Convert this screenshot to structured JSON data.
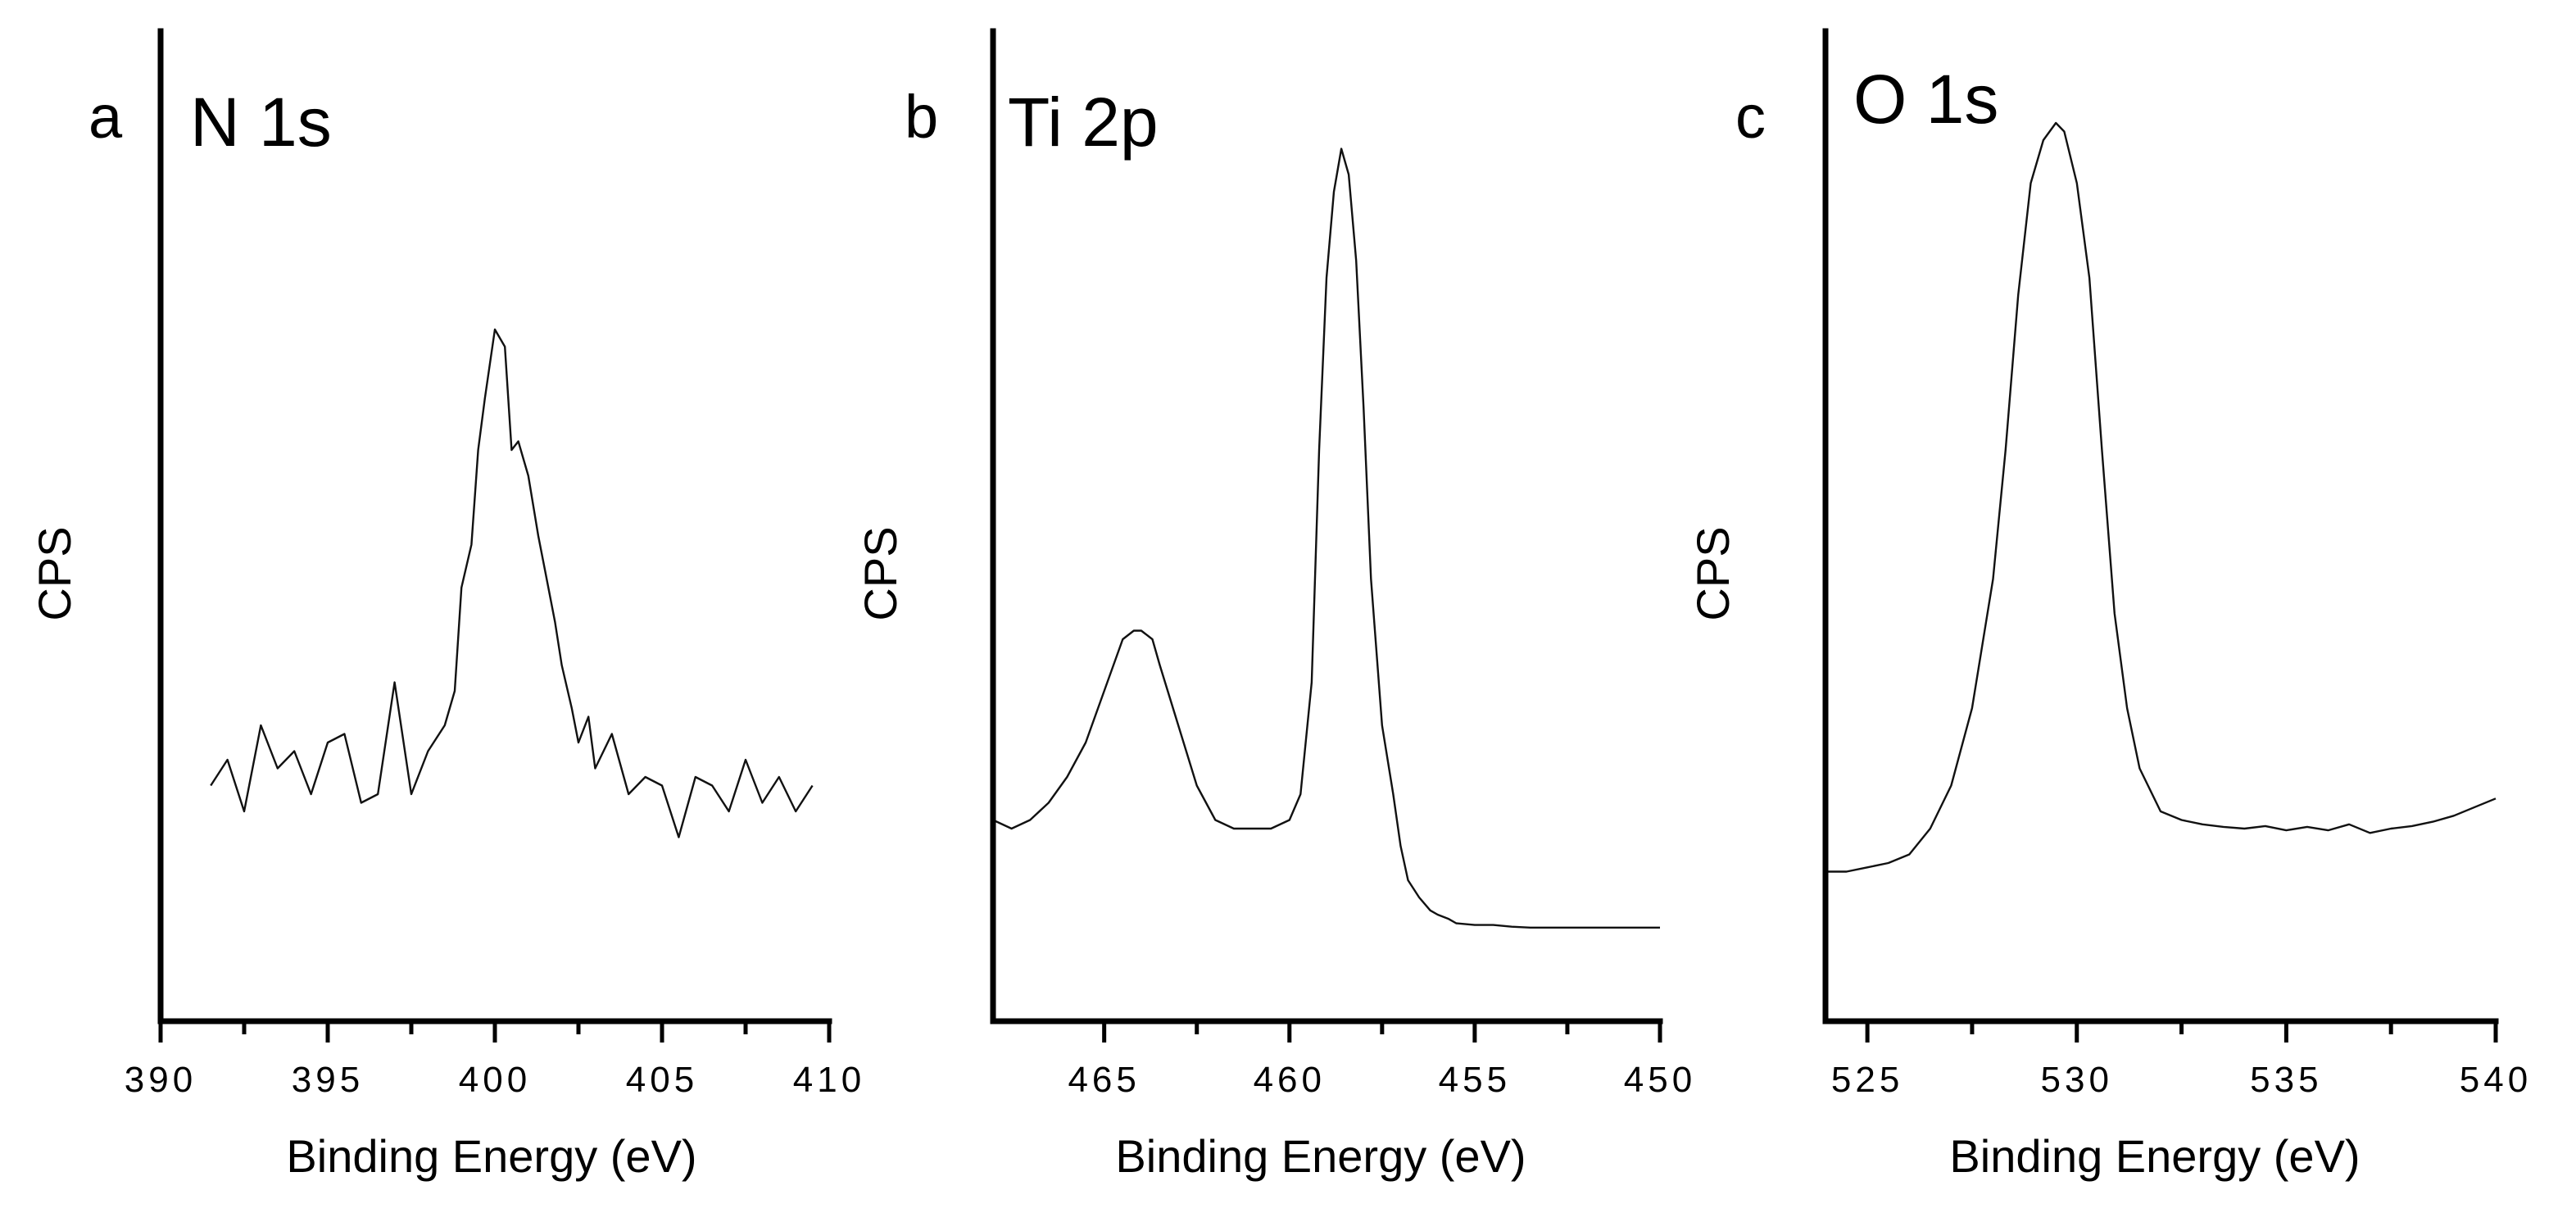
{
  "chart_data": [
    {
      "type": "line",
      "panel_letter": "a",
      "title": "N 1s",
      "xlabel": "Binding Energy (eV)",
      "ylabel": "CPS",
      "xlim": [
        390,
        410
      ],
      "x_reversed": false,
      "xticks": [
        390,
        395,
        400,
        405,
        410
      ],
      "xtick_labels": [
        "390",
        "395",
        "400",
        "405",
        "410"
      ],
      "ylim": [
        0,
        100
      ],
      "y_ticks_shown": false,
      "series": [
        {
          "name": "N 1s",
          "x": [
            391.5,
            392.0,
            392.5,
            393.0,
            393.5,
            394.0,
            394.5,
            395.0,
            395.5,
            396.0,
            396.5,
            397.0,
            397.5,
            398.0,
            398.5,
            398.8,
            399.0,
            399.3,
            399.5,
            399.7,
            400.0,
            400.3,
            400.5,
            400.7,
            401.0,
            401.3,
            401.5,
            401.8,
            402.0,
            402.3,
            402.5,
            402.8,
            403.0,
            403.5,
            404.0,
            404.5,
            405.0,
            405.5,
            406.0,
            406.5,
            407.0,
            407.5,
            408.0,
            408.5,
            409.0,
            409.5
          ],
          "y": [
            23,
            26,
            20,
            30,
            25,
            27,
            22,
            28,
            29,
            21,
            22,
            35,
            22,
            27,
            30,
            34,
            46,
            51,
            62,
            68,
            76,
            74,
            62,
            63,
            59,
            52,
            48,
            42,
            37,
            32,
            28,
            31,
            25,
            29,
            22,
            24,
            23,
            17,
            24,
            23,
            20,
            26,
            21,
            24,
            20,
            23
          ]
        }
      ]
    },
    {
      "type": "line",
      "panel_letter": "b",
      "title": "Ti 2p",
      "xlabel": "Binding Energy (eV)",
      "ylabel": "CPS",
      "xlim": [
        468,
        450
      ],
      "x_reversed": true,
      "xticks": [
        465,
        460,
        455,
        450
      ],
      "xtick_labels": [
        "465",
        "460",
        "455",
        "450"
      ],
      "ylim": [
        0,
        100
      ],
      "y_ticks_shown": false,
      "series": [
        {
          "name": "Ti 2p",
          "x": [
            468,
            467.5,
            467,
            466.5,
            466,
            465.5,
            465,
            464.5,
            464.2,
            464,
            463.7,
            463.5,
            463,
            462.5,
            462,
            461.5,
            461,
            460.5,
            460,
            459.7,
            459.4,
            459.2,
            459,
            458.8,
            458.6,
            458.4,
            458.2,
            458,
            457.8,
            457.5,
            457.2,
            457,
            456.8,
            456.5,
            456.2,
            456,
            455.7,
            455.5,
            455,
            454.5,
            454,
            453.5,
            453,
            452.5,
            452,
            451.5,
            451,
            450.5,
            450
          ],
          "y": [
            19,
            18,
            19,
            21,
            24,
            28,
            34,
            40,
            41,
            41,
            40,
            37,
            30,
            23,
            19,
            18,
            18,
            18,
            19,
            22,
            35,
            62,
            82,
            92,
            97,
            94,
            84,
            67,
            47,
            30,
            22,
            16,
            12,
            10,
            8.5,
            8,
            7.5,
            7,
            6.8,
            6.8,
            6.6,
            6.5,
            6.5,
            6.5,
            6.5,
            6.5,
            6.5,
            6.5,
            6.5
          ]
        }
      ]
    },
    {
      "type": "line",
      "panel_letter": "c",
      "title": "O 1s",
      "xlabel": "Binding Energy (eV)",
      "ylabel": "CPS",
      "xlim": [
        524,
        540
      ],
      "x_reversed": false,
      "xticks": [
        525,
        530,
        535,
        540
      ],
      "xtick_labels": [
        "525",
        "530",
        "535",
        "540"
      ],
      "ylim": [
        0,
        100
      ],
      "y_ticks_shown": false,
      "series": [
        {
          "name": "O 1s",
          "x": [
            524,
            524.5,
            525,
            525.5,
            526,
            526.5,
            527,
            527.5,
            528,
            528.3,
            528.6,
            528.9,
            529.2,
            529.5,
            529.7,
            530.0,
            530.3,
            530.6,
            530.9,
            531.2,
            531.5,
            532,
            532.5,
            533,
            533.5,
            534,
            534.5,
            535,
            535.5,
            536,
            536.5,
            537,
            537.5,
            538,
            538.5,
            539,
            539.5,
            540
          ],
          "y": [
            13,
            13,
            13.5,
            14,
            15,
            18,
            23,
            32,
            47,
            62,
            80,
            93,
            98,
            100,
            99,
            93,
            82,
            62,
            43,
            32,
            25,
            20,
            19,
            18.5,
            18.2,
            18,
            18.3,
            17.8,
            18.2,
            17.8,
            18.5,
            17.5,
            18,
            18.3,
            18.8,
            19.5,
            20.5,
            21.5
          ]
        }
      ]
    }
  ]
}
